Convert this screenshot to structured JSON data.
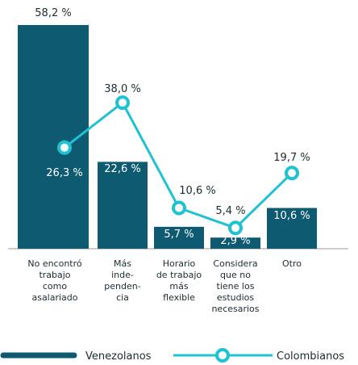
{
  "chart_data": {
    "type": "bar",
    "categories": [
      [
        "No encontró",
        "trabajo",
        "como",
        "asalariado"
      ],
      [
        "Más",
        "inde-",
        "penden-",
        "cia"
      ],
      [
        "Horario",
        "de trabajo",
        "más",
        "flexible"
      ],
      [
        "Considera",
        "que no",
        "tiene los",
        "estudios",
        "necesarios"
      ],
      [
        "Otro"
      ]
    ],
    "series": [
      {
        "name": "Venezolanos",
        "type": "bar",
        "color": "#0e5a70",
        "values": [
          58.2,
          22.6,
          5.7,
          2.9,
          10.6
        ],
        "value_labels": [
          "58,2 %",
          "22,6 %",
          "5,7 %",
          "2,9 %",
          "10,6 %"
        ]
      },
      {
        "name": "Colombianos",
        "type": "line",
        "color": "#1fc2d2",
        "values": [
          26.3,
          38.0,
          10.6,
          5.4,
          19.7
        ],
        "value_labels": [
          "26,3 %",
          "38,0 %",
          "10,6 %",
          "5,4 %",
          "19,7 %"
        ]
      }
    ]
  }
}
